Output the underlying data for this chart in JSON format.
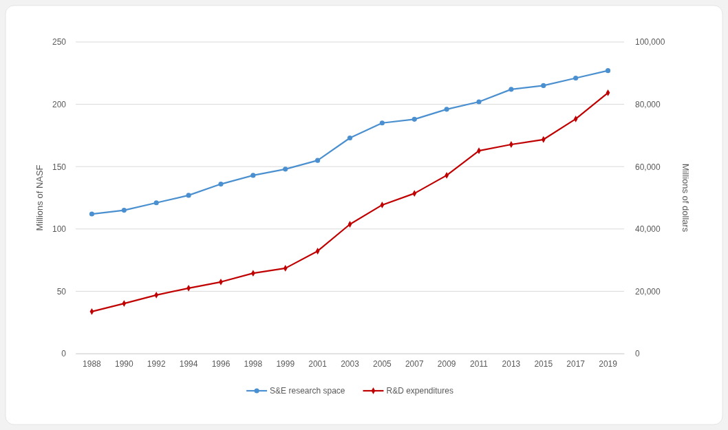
{
  "chart_data": {
    "type": "line",
    "ylabel": "Millions of NASF",
    "y2label": "Millions of dollars",
    "categories": [
      "1988",
      "1990",
      "1992",
      "1994",
      "1996",
      "1998",
      "1999",
      "2001",
      "2003",
      "2005",
      "2007",
      "2009",
      "2011",
      "2013",
      "2015",
      "2017",
      "2019"
    ],
    "series": [
      {
        "name": "S&E research space",
        "color": "#4a8fcf",
        "marker": "circle",
        "values": [
          112,
          115,
          121,
          127,
          136,
          143,
          148,
          155,
          173,
          185,
          188,
          196,
          202,
          212,
          215,
          221,
          227
        ]
      },
      {
        "name": "R&D expenditures",
        "color": "#c00000",
        "marker": "diamond",
        "axis": "y2",
        "values": [
          13500,
          16100,
          18800,
          21000,
          23000,
          25800,
          27400,
          32900,
          41500,
          47700,
          51400,
          57200,
          65100,
          67100,
          68700,
          75300,
          83700
        ]
      }
    ],
    "ylim": [
      0,
      250
    ],
    "yticks": [
      0,
      50,
      100,
      150,
      200,
      250
    ],
    "y2lim": [
      0,
      100000
    ],
    "y2ticks": [
      {
        "value": 0,
        "label": "0"
      },
      {
        "value": 20000,
        "label": "20,000"
      },
      {
        "value": 40000,
        "label": "40,000"
      },
      {
        "value": 60000,
        "label": "60,000"
      },
      {
        "value": 80000,
        "label": "80,000"
      },
      {
        "value": 100000,
        "label": "100,000"
      }
    ],
    "grid": "y",
    "legend": "bottom",
    "line_style": "solid"
  }
}
